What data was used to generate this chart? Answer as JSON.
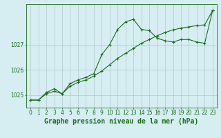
{
  "line1_x": [
    0,
    1,
    2,
    3,
    4,
    5,
    6,
    7,
    8,
    9,
    10,
    11,
    12,
    13,
    14,
    15,
    16,
    17,
    18,
    19,
    20,
    21,
    22,
    23
  ],
  "line1_y": [
    1024.8,
    1024.8,
    1025.1,
    1025.25,
    1025.05,
    1025.45,
    1025.6,
    1025.7,
    1025.85,
    1026.6,
    1027.0,
    1027.6,
    1027.9,
    1028.0,
    1027.6,
    1027.55,
    1027.25,
    1027.15,
    1027.1,
    1027.2,
    1027.2,
    1027.1,
    1027.05,
    1028.35
  ],
  "line2_x": [
    0,
    1,
    2,
    3,
    4,
    5,
    6,
    7,
    8,
    9,
    10,
    11,
    12,
    13,
    14,
    15,
    16,
    17,
    18,
    19,
    20,
    21,
    22,
    23
  ],
  "line2_y": [
    1024.8,
    1024.8,
    1025.05,
    1025.15,
    1025.05,
    1025.35,
    1025.5,
    1025.6,
    1025.75,
    1025.95,
    1026.2,
    1026.45,
    1026.65,
    1026.85,
    1027.05,
    1027.2,
    1027.35,
    1027.48,
    1027.58,
    1027.65,
    1027.7,
    1027.75,
    1027.78,
    1028.35
  ],
  "line_color": "#1a6b1a",
  "bg_color": "#d6eef2",
  "grid_color": "#b0c8cc",
  "xlabel": "Graphe pression niveau de la mer (hPa)",
  "yticks": [
    1025,
    1026,
    1027
  ],
  "ylim": [
    1024.5,
    1028.6
  ],
  "xlim": [
    -0.5,
    23.5
  ],
  "marker": "+",
  "markersize": 3.5,
  "linewidth": 0.8,
  "xlabel_fontsize": 7.0,
  "tick_fontsize": 5.5
}
